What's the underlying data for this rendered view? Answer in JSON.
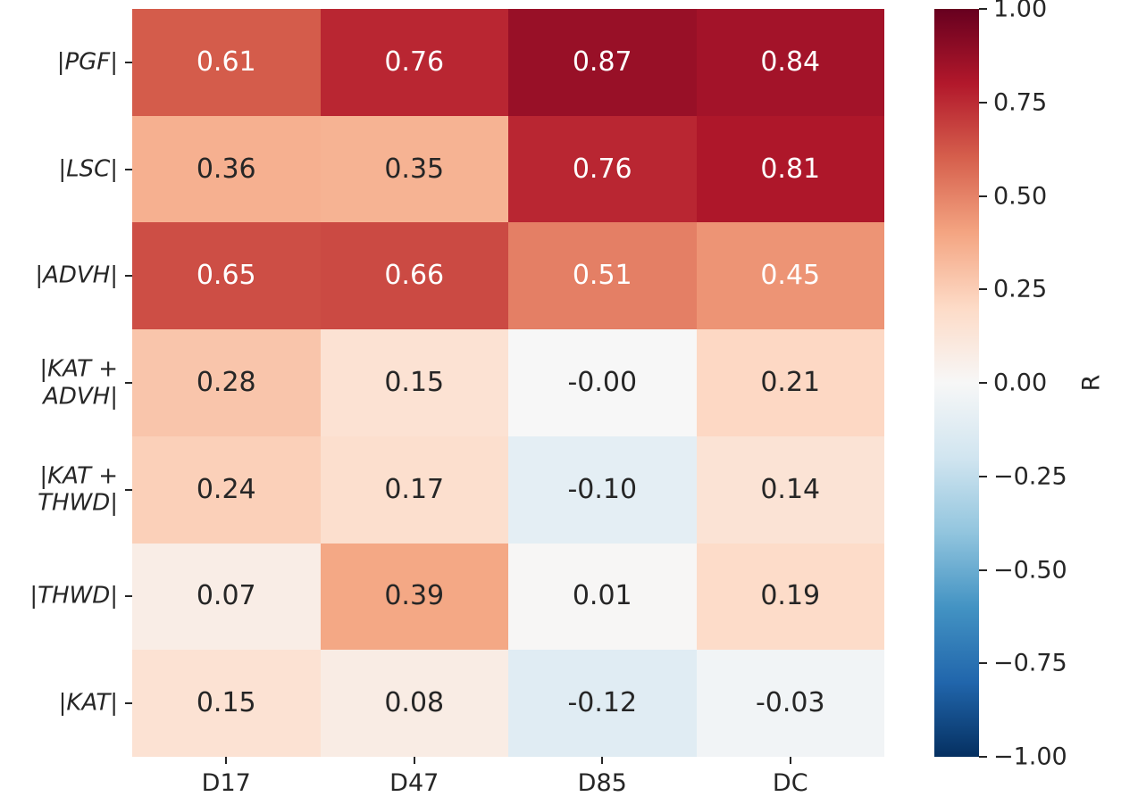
{
  "chart_data": {
    "type": "heatmap",
    "rows": [
      "|PGF|",
      "|LSC|",
      "|ADVH|",
      "|KAT +\nADVH|",
      "|KAT +\nTHWD|",
      "|THWD|",
      "|KAT|"
    ],
    "columns": [
      "D17",
      "D47",
      "D85",
      "DC"
    ],
    "values": [
      [
        0.61,
        0.76,
        0.87,
        0.84
      ],
      [
        0.36,
        0.35,
        0.76,
        0.81
      ],
      [
        0.65,
        0.66,
        0.51,
        0.45
      ],
      [
        0.28,
        0.15,
        -0.0,
        0.21
      ],
      [
        0.24,
        0.17,
        -0.1,
        0.14
      ],
      [
        0.07,
        0.39,
        0.01,
        0.19
      ],
      [
        0.15,
        0.08,
        -0.12,
        -0.03
      ]
    ],
    "annotations": [
      [
        "0.61",
        "0.76",
        "0.87",
        "0.84"
      ],
      [
        "0.36",
        "0.35",
        "0.76",
        "0.81"
      ],
      [
        "0.65",
        "0.66",
        "0.51",
        "0.45"
      ],
      [
        "0.28",
        "0.15",
        "-0.00",
        "0.21"
      ],
      [
        "0.24",
        "0.17",
        "-0.10",
        "0.14"
      ],
      [
        "0.07",
        "0.39",
        "0.01",
        "0.19"
      ],
      [
        "0.15",
        "0.08",
        "-0.12",
        "-0.03"
      ]
    ],
    "colormap": "RdBu_r",
    "vmin": -1,
    "vmax": 1,
    "grid": false,
    "legend_position": "right-colorbar",
    "colorbar": {
      "label": "R",
      "ticks": [
        {
          "value": 1.0,
          "label": "1.00"
        },
        {
          "value": 0.75,
          "label": "0.75"
        },
        {
          "value": 0.5,
          "label": "0.50"
        },
        {
          "value": 0.25,
          "label": "0.25"
        },
        {
          "value": 0.0,
          "label": "0.00"
        },
        {
          "value": -0.25,
          "label": "−0.25"
        },
        {
          "value": -0.5,
          "label": "−0.50"
        },
        {
          "value": -0.75,
          "label": "−0.75"
        },
        {
          "value": -1.0,
          "label": "−1.00"
        }
      ]
    }
  },
  "colors": {
    "rdbu_r_stops": [
      "#053061",
      "#2166ac",
      "#4393c3",
      "#92c5de",
      "#d1e5f0",
      "#f7f7f7",
      "#fddbc7",
      "#f4a582",
      "#d6604d",
      "#b2182b",
      "#67001f"
    ],
    "annotation_dark": "#262626",
    "annotation_light": "#ffffff",
    "tick_color": "#262626"
  }
}
